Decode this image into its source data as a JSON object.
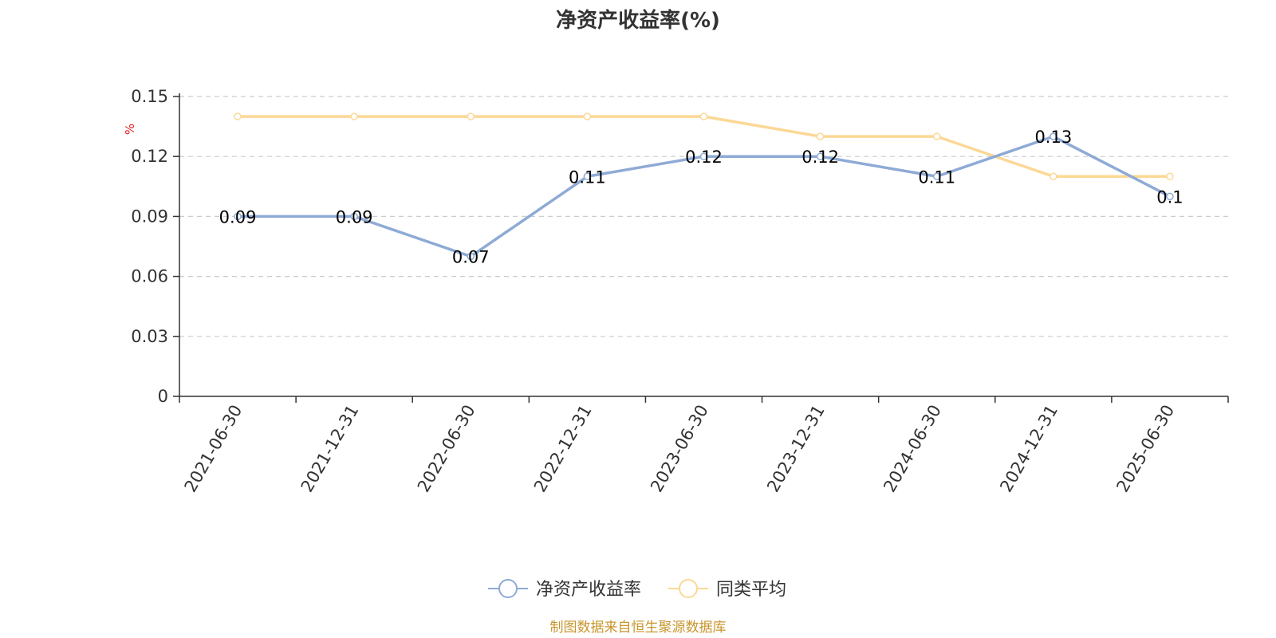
{
  "chart_data": {
    "type": "line",
    "title": "净资产收益率(%)",
    "ylabel": "%",
    "xlabel": "",
    "x": [
      "2021-06-30",
      "2021-12-31",
      "2022-06-30",
      "2022-12-31",
      "2023-06-30",
      "2023-12-31",
      "2024-06-30",
      "2024-12-31",
      "2025-06-30"
    ],
    "ylim": [
      0,
      0.15
    ],
    "yticks": [
      "0",
      "0.03",
      "0.06",
      "0.09",
      "0.12",
      "0.15"
    ],
    "grid": true,
    "legend_position": "bottom",
    "series": [
      {
        "name": "净资产收益率",
        "color": "#8eaad6",
        "values": [
          0.09,
          0.09,
          0.07,
          0.11,
          0.12,
          0.12,
          0.11,
          0.13,
          0.1
        ],
        "labels": [
          "0.09",
          "0.09",
          "0.07",
          "0.11",
          "0.12",
          "0.12",
          "0.11",
          "0.13",
          "0.1"
        ]
      },
      {
        "name": "同类平均",
        "color": "#fcd896",
        "values": [
          0.14,
          0.14,
          0.14,
          0.14,
          0.14,
          0.13,
          0.13,
          0.11,
          0.11
        ]
      }
    ]
  },
  "source_note": "制图数据来自恒生聚源数据库"
}
